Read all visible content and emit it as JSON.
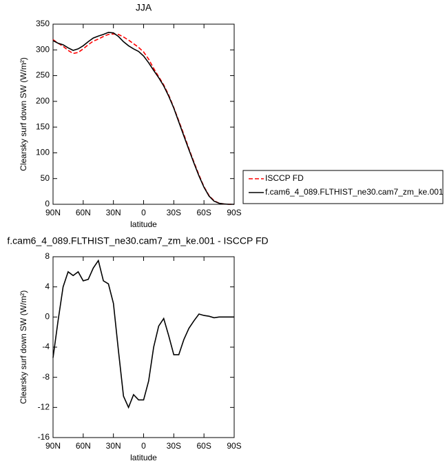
{
  "chart_data": [
    {
      "type": "line",
      "title": "JJA",
      "xlabel": "latitude",
      "ylabel": "Clearsky surf down SW (W/m²)",
      "x": [
        90,
        85,
        80,
        75,
        70,
        65,
        60,
        55,
        50,
        45,
        40,
        35,
        30,
        25,
        20,
        15,
        10,
        5,
        0,
        -5,
        -10,
        -15,
        -20,
        -25,
        -30,
        -35,
        -40,
        -45,
        -50,
        -55,
        -60,
        -65,
        -70,
        -75,
        -80,
        -85,
        -90
      ],
      "xlim": [
        90,
        -90
      ],
      "xticks": [
        {
          "value": 90,
          "label": "90N"
        },
        {
          "value": 60,
          "label": "60N"
        },
        {
          "value": 30,
          "label": "30N"
        },
        0,
        {
          "value": -30,
          "label": "30S"
        },
        {
          "value": -60,
          "label": "60S"
        },
        {
          "value": -90,
          "label": "90S"
        }
      ],
      "ylim": [
        0,
        350
      ],
      "yticks": [
        0,
        50,
        100,
        150,
        200,
        250,
        300,
        350
      ],
      "legend": "right",
      "series": [
        {
          "name": "ISCCP FD",
          "color": "#ff0000",
          "dashed": true,
          "values": [
            320,
            313,
            307,
            299,
            293,
            295,
            302,
            310,
            317,
            321,
            326,
            330,
            331,
            330,
            325,
            319,
            312,
            305,
            296,
            282,
            264,
            248,
            232,
            212,
            188,
            162,
            136,
            108,
            82,
            57,
            34,
            17,
            7,
            2,
            0.5,
            0,
            0
          ]
        },
        {
          "name": "f.cam6_4_089.FLTHIST_ne30.cam7_zm_ke.001",
          "color": "#000000",
          "dashed": false,
          "values": [
            318,
            313,
            310,
            304,
            299,
            302,
            308,
            316,
            323,
            327,
            330,
            334,
            333,
            326,
            316,
            308,
            302,
            297,
            288,
            275,
            260,
            246,
            230,
            210,
            187,
            160,
            133,
            106,
            80,
            55,
            33,
            16,
            6,
            2,
            0.5,
            0,
            0
          ]
        }
      ]
    },
    {
      "type": "line",
      "title": "f.cam6_4_089.FLTHIST_ne30.cam7_zm_ke.001 - ISCCP FD",
      "xlabel": "latitude",
      "ylabel": "Clearsky surf down SW (W/m²)",
      "x": [
        90,
        85,
        80,
        75,
        70,
        65,
        60,
        55,
        50,
        45,
        40,
        35,
        30,
        25,
        20,
        15,
        10,
        5,
        0,
        -5,
        -10,
        -15,
        -20,
        -25,
        -30,
        -35,
        -40,
        -45,
        -50,
        -55,
        -60,
        -65,
        -70,
        -75,
        -80,
        -85,
        -90
      ],
      "xlim": [
        90,
        -90
      ],
      "xticks": [
        {
          "value": 90,
          "label": "90N"
        },
        {
          "value": 60,
          "label": "60N"
        },
        {
          "value": 30,
          "label": "30N"
        },
        0,
        {
          "value": -30,
          "label": "30S"
        },
        {
          "value": -60,
          "label": "60S"
        },
        {
          "value": -90,
          "label": "90S"
        }
      ],
      "ylim": [
        -16,
        8
      ],
      "yticks": [
        -16,
        -12,
        -8,
        -4,
        0,
        4,
        8
      ],
      "series": [
        {
          "color": "#000000",
          "dashed": false,
          "values": [
            -5.4,
            -0.5,
            4,
            6,
            5.5,
            6,
            4.8,
            5,
            6.5,
            7.5,
            4.8,
            4.4,
            1.8,
            -4.5,
            -10.5,
            -12,
            -10.3,
            -11,
            -11,
            -8.5,
            -4,
            -1.2,
            -0.2,
            -2.5,
            -5,
            -5,
            -3,
            -1.5,
            -0.5,
            0.4,
            0.2,
            0.1,
            -0.1,
            0,
            0,
            0,
            0
          ]
        }
      ]
    }
  ]
}
